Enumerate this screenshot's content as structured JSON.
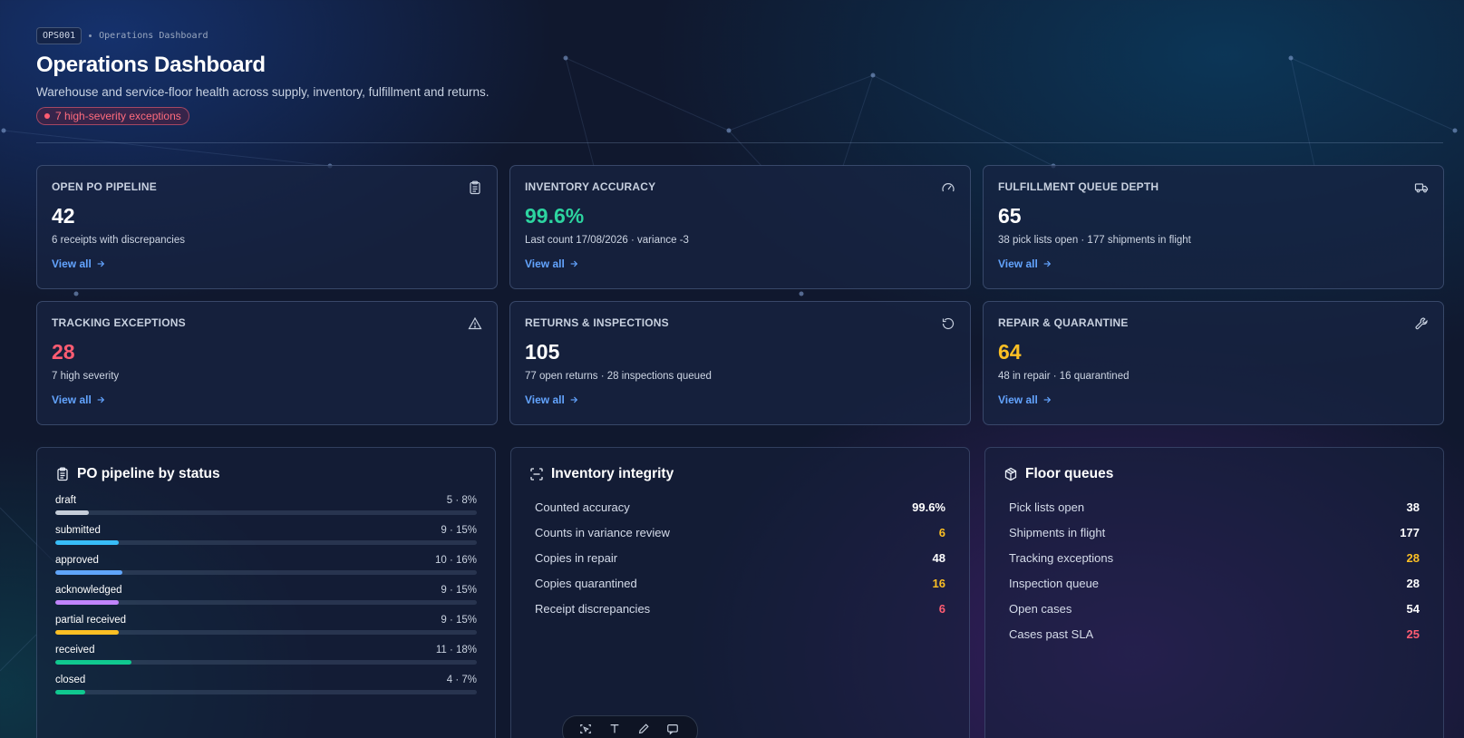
{
  "header": {
    "code": "OPS001",
    "crumb": "Operations Dashboard",
    "title": "Operations Dashboard",
    "subtitle": "Warehouse and service-floor health across supply, inventory, fulfillment and returns.",
    "alert": "7 high-severity exceptions"
  },
  "kpis": [
    {
      "label": "OPEN PO PIPELINE",
      "value": "42",
      "sub": "6 receipts with discrepancies",
      "link": "View all",
      "color": "#ffffff",
      "icon": "clipboard-icon"
    },
    {
      "label": "INVENTORY ACCURACY",
      "value": "99.6%",
      "sub": "Last count 17/08/2026 · variance -3",
      "link": "View all",
      "color": "#2dd4a0",
      "icon": "gauge-icon"
    },
    {
      "label": "FULFILLMENT QUEUE DEPTH",
      "value": "65",
      "sub": "38 pick lists open · 177 shipments in flight",
      "link": "View all",
      "color": "#ffffff",
      "icon": "truck-icon"
    },
    {
      "label": "TRACKING EXCEPTIONS",
      "value": "28",
      "sub": "7 high severity",
      "link": "View all",
      "color": "#ff5c72",
      "icon": "warning-icon"
    },
    {
      "label": "RETURNS & INSPECTIONS",
      "value": "105",
      "sub": "77 open returns · 28 inspections queued",
      "link": "View all",
      "color": "#ffffff",
      "icon": "rotate-icon"
    },
    {
      "label": "REPAIR & QUARANTINE",
      "value": "64",
      "sub": "48 in repair · 16 quarantined",
      "link": "View all",
      "color": "#fbbf24",
      "icon": "wrench-icon"
    }
  ],
  "po_pipeline": {
    "title": "PO pipeline by status",
    "rows": [
      {
        "name": "draft",
        "value": "5 · 8%",
        "pct": 8,
        "color": "#c5cdd9"
      },
      {
        "name": "submitted",
        "value": "9 · 15%",
        "pct": 15,
        "color": "#38bdf8"
      },
      {
        "name": "approved",
        "value": "10 · 16%",
        "pct": 16,
        "color": "#60a5fa"
      },
      {
        "name": "acknowledged",
        "value": "9 · 15%",
        "pct": 15,
        "color": "#c084fc"
      },
      {
        "name": "partial received",
        "value": "9 · 15%",
        "pct": 15,
        "color": "#fbbf24"
      },
      {
        "name": "received",
        "value": "11 · 18%",
        "pct": 18,
        "color": "#10c88f"
      },
      {
        "name": "closed",
        "value": "4 · 7%",
        "pct": 7,
        "color": "#10c88f"
      }
    ]
  },
  "inventory_integrity": {
    "title": "Inventory integrity",
    "rows": [
      {
        "label": "Counted accuracy",
        "value": "99.6%",
        "color": "#ffffff"
      },
      {
        "label": "Counts in variance review",
        "value": "6",
        "color": "#fbbf24"
      },
      {
        "label": "Copies in repair",
        "value": "48",
        "color": "#ffffff"
      },
      {
        "label": "Copies quarantined",
        "value": "16",
        "color": "#fbbf24"
      },
      {
        "label": "Receipt discrepancies",
        "value": "6",
        "color": "#ff5c72"
      }
    ]
  },
  "floor_queues": {
    "title": "Floor queues",
    "rows": [
      {
        "label": "Pick lists open",
        "value": "38",
        "color": "#ffffff"
      },
      {
        "label": "Shipments in flight",
        "value": "177",
        "color": "#ffffff"
      },
      {
        "label": "Tracking exceptions",
        "value": "28",
        "color": "#fbbf24"
      },
      {
        "label": "Inspection queue",
        "value": "28",
        "color": "#ffffff"
      },
      {
        "label": "Open cases",
        "value": "54",
        "color": "#ffffff"
      },
      {
        "label": "Cases past SLA",
        "value": "25",
        "color": "#ff5c72"
      }
    ]
  },
  "toolbar": {
    "icons": [
      "select-icon",
      "text-icon",
      "pen-icon",
      "comment-icon"
    ]
  }
}
